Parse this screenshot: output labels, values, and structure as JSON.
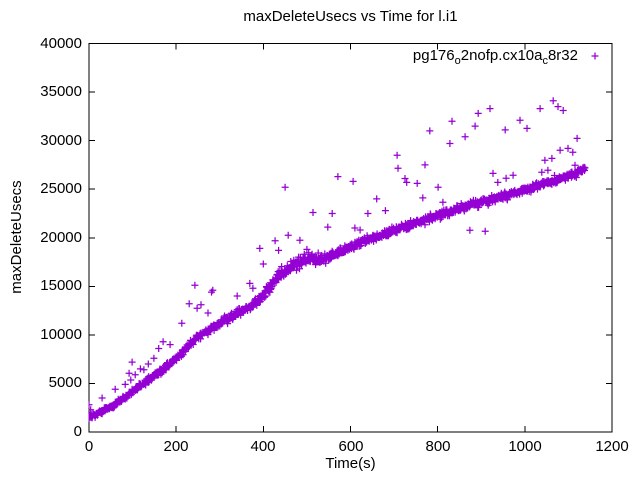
{
  "title": "maxDeleteUsecs vs Time for l.i1",
  "legend": {
    "part1": "pg176",
    "sub1": "o",
    "part2": "2nofp.cx10a",
    "sub2": "c",
    "part3": "8r32"
  },
  "colors": {
    "series": "#9400d3",
    "axis": "#000000",
    "background": "#ffffff",
    "text": "#000000"
  },
  "chart_data": {
    "type": "scatter",
    "title": "maxDeleteUsecs vs Time for l.i1",
    "xlabel": "Time(s)",
    "ylabel": "maxDeleteUsecs",
    "xlim": [
      0,
      1200
    ],
    "ylim": [
      0,
      40000
    ],
    "grid": false,
    "legend_position": "top-right-inside",
    "xticks": [
      0,
      200,
      400,
      600,
      800,
      1000,
      1200
    ],
    "xtick_labels": [
      "0",
      "200",
      "400",
      "600",
      "800",
      "1000",
      "1200"
    ],
    "yticks": [
      0,
      5000,
      10000,
      15000,
      20000,
      25000,
      30000,
      35000,
      40000
    ],
    "ytick_labels": [
      "0",
      "5000",
      "10000",
      "15000",
      "20000",
      "25000",
      "30000",
      "35000",
      "40000"
    ],
    "series": [
      {
        "name": "pg176_o2nofp.cx10a_c8r32",
        "marker": "plus",
        "color": "#9400d3",
        "n_points": 1139,
        "t_max": 1138,
        "trend_anchors_t": [
          0,
          25,
          50,
          75,
          100,
          125,
          150,
          175,
          200,
          225,
          250,
          275,
          300,
          325,
          350,
          375,
          395,
          415,
          435,
          455,
          475,
          495,
          515,
          535,
          555,
          575,
          600,
          640,
          680,
          720,
          760,
          800,
          840,
          880,
          920,
          960,
          1000,
          1040,
          1080,
          1110,
          1138
        ],
        "trend_anchors_v": [
          1500,
          2000,
          2600,
          3300,
          4200,
          5000,
          5800,
          6700,
          7600,
          8700,
          9800,
          10500,
          11200,
          11900,
          12500,
          13100,
          13700,
          14900,
          16100,
          16800,
          17200,
          17700,
          17900,
          17700,
          18100,
          18500,
          19100,
          19800,
          20500,
          21100,
          21700,
          22300,
          22900,
          23400,
          23900,
          24400,
          24900,
          25500,
          26100,
          26500,
          27000
        ],
        "spread_anchors_t": [
          0,
          150,
          350,
          400,
          440,
          520,
          560,
          700,
          900,
          1138
        ],
        "spread_anchors_v": [
          250,
          320,
          450,
          650,
          600,
          650,
          450,
          420,
          420,
          400
        ],
        "outliers": [
          [
            0,
            2800
          ],
          [
            4,
            2300
          ],
          [
            30,
            3500
          ],
          [
            60,
            4400
          ],
          [
            83,
            4900
          ],
          [
            92,
            6050
          ],
          [
            96,
            5350
          ],
          [
            99,
            7200
          ],
          [
            106,
            5900
          ],
          [
            118,
            6500
          ],
          [
            126,
            6400
          ],
          [
            136,
            7000
          ],
          [
            149,
            7600
          ],
          [
            160,
            8600
          ],
          [
            170,
            9300
          ],
          [
            186,
            9000
          ],
          [
            213,
            11200
          ],
          [
            230,
            13200
          ],
          [
            243,
            15100
          ],
          [
            248,
            12750
          ],
          [
            257,
            13100
          ],
          [
            273,
            12250
          ],
          [
            281,
            14400
          ],
          [
            284,
            14600
          ],
          [
            340,
            14000
          ],
          [
            369,
            15300
          ],
          [
            376,
            14800
          ],
          [
            392,
            18900
          ],
          [
            400,
            17300
          ],
          [
            427,
            19700
          ],
          [
            435,
            18700
          ],
          [
            450,
            25200
          ],
          [
            457,
            20260
          ],
          [
            484,
            19740
          ],
          [
            500,
            18800
          ],
          [
            514,
            22600
          ],
          [
            548,
            21100
          ],
          [
            558,
            22500
          ],
          [
            571,
            26300
          ],
          [
            606,
            25800
          ],
          [
            610,
            21000
          ],
          [
            622,
            20800
          ],
          [
            640,
            22500
          ],
          [
            660,
            24000
          ],
          [
            680,
            22800
          ],
          [
            707,
            28500
          ],
          [
            709,
            27150
          ],
          [
            725,
            26100
          ],
          [
            729,
            25700
          ],
          [
            753,
            25600
          ],
          [
            766,
            24100
          ],
          [
            771,
            27500
          ],
          [
            782,
            31000
          ],
          [
            801,
            25200
          ],
          [
            812,
            23650
          ],
          [
            828,
            29700
          ],
          [
            833,
            32000
          ],
          [
            863,
            30400
          ],
          [
            874,
            20770
          ],
          [
            886,
            31500
          ],
          [
            893,
            32800
          ],
          [
            909,
            20670
          ],
          [
            920,
            33300
          ],
          [
            927,
            26630
          ],
          [
            938,
            25700
          ],
          [
            955,
            31100
          ],
          [
            957,
            26120
          ],
          [
            973,
            26430
          ],
          [
            989,
            32100
          ],
          [
            1005,
            31260
          ],
          [
            1035,
            33300
          ],
          [
            1039,
            26740
          ],
          [
            1046,
            27970
          ],
          [
            1053,
            26940
          ],
          [
            1062,
            28170
          ],
          [
            1065,
            34100
          ],
          [
            1076,
            33500
          ],
          [
            1081,
            29000
          ],
          [
            1088,
            33100
          ],
          [
            1099,
            29200
          ],
          [
            1110,
            28800
          ],
          [
            1115,
            27460
          ],
          [
            1120,
            30230
          ]
        ]
      }
    ]
  }
}
